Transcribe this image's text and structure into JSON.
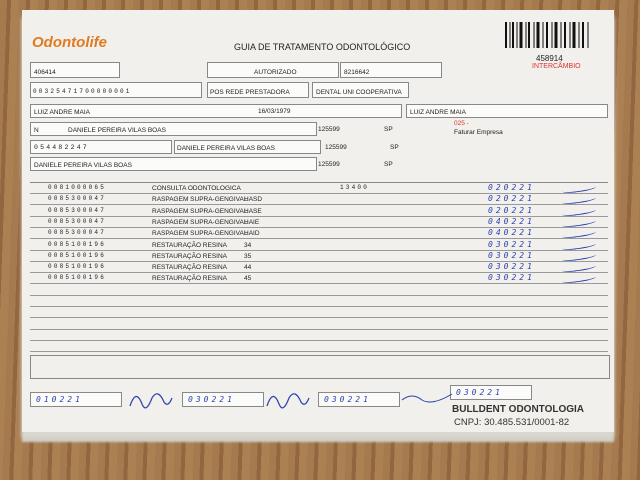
{
  "header": {
    "logo": "Odontolife",
    "title": "GUIA DE TRATAMENTO ODONTOLÓGICO",
    "guide_number": "458914",
    "guide_type": "INTERCÂMBIO"
  },
  "beneficiary": {
    "ans_registry": "406414",
    "status": "AUTORIZADO",
    "main_guide_number": "8216642",
    "card_number": "00325471700000001",
    "plan": "POS REDE PRESTADORA",
    "company": "DENTAL UNI COOPERATIVA",
    "name": "LUIZ ANDRE MAIA",
    "birth_date": "16/03/1979",
    "holder": "LUIZ ANDRE MAIA"
  },
  "provider": {
    "contract_type": "N",
    "professional": "DANIELE PEREIRA VILAS BOAS",
    "cro": "125599",
    "uf": "SP",
    "billing_code": "025 -",
    "billing_text": "Faturar Empresa",
    "cpf": "054482247",
    "executor": "DANIELE PEREIRA VILAS BOAS",
    "executor_cro": "125599",
    "executor_uf": "SP",
    "responsible": "DANIELE PEREIRA VILAS BOAS",
    "responsible_cro": "125599",
    "responsible_uf": "SP"
  },
  "procedures": [
    {
      "code": "0081000065",
      "description": "CONSULTA ODONTOLOGICA",
      "tooth": "",
      "value": "13400",
      "date": "020221"
    },
    {
      "code": "0085300047",
      "description": "RASPAGEM SUPRA-GENGIVAL",
      "tooth": "HASD",
      "value": "",
      "date": "020221"
    },
    {
      "code": "0085300047",
      "description": "RASPAGEM SUPRA-GENGIVAL",
      "tooth": "HASE",
      "value": "",
      "date": "020221"
    },
    {
      "code": "0085300047",
      "description": "RASPAGEM SUPRA-GENGIVAL",
      "tooth": "HAIE",
      "value": "",
      "date": "040221"
    },
    {
      "code": "0085300047",
      "description": "RASPAGEM SUPRA-GENGIVAL",
      "tooth": "HAID",
      "value": "",
      "date": "040221"
    },
    {
      "code": "0085100196",
      "description": "RESTAURAÇÃO RESINA",
      "tooth": "34",
      "value": "",
      "date": "030221"
    },
    {
      "code": "0085100196",
      "description": "RESTAURAÇÃO RESINA",
      "tooth": "35",
      "value": "",
      "date": "030221"
    },
    {
      "code": "0085100196",
      "description": "RESTAURAÇÃO RESINA",
      "tooth": "44",
      "value": "",
      "date": "030221"
    },
    {
      "code": "0085100196",
      "description": "RESTAURAÇÃO RESINA",
      "tooth": "45",
      "value": "",
      "date": "030221"
    }
  ],
  "footer": {
    "date_start": "010221",
    "date_auth": "030221",
    "date_end": "030221",
    "date_sign": "030221",
    "clinic": "BULLDENT ODONTOLOGIA",
    "cnpj": "CNPJ: 30.485.531/0001-82"
  }
}
